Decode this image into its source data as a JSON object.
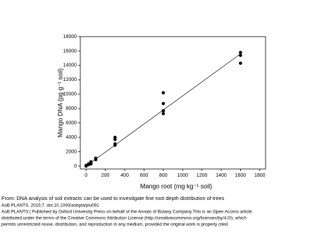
{
  "chart_data": {
    "type": "scatter",
    "x_label": "Mango root (mg kg⁻¹ soil)",
    "y_label": "Mango DNA (pg g⁻¹ soil)",
    "series": [
      {
        "color": "#000000",
        "x": [
          0,
          0,
          25,
          25,
          50,
          50,
          50,
          100,
          100,
          300,
          300,
          300,
          300,
          800,
          800,
          800,
          800,
          1600,
          1600,
          1600
        ],
        "values": [
          0,
          100,
          200,
          300,
          400,
          600,
          300,
          1100,
          900,
          4000,
          3700,
          3100,
          2900,
          10200,
          8700,
          7700,
          7300,
          15800,
          15400,
          14300
        ]
      }
    ],
    "trend_line": {
      "color": "#000000",
      "x": [
        0,
        1600
      ],
      "y": [
        0,
        15600
      ]
    },
    "xlim": [
      -60,
      1860
    ],
    "ylim": [
      -400,
      18000
    ],
    "xticks": [
      0,
      200,
      400,
      600,
      800,
      1000,
      1200,
      1400,
      1600,
      1800
    ],
    "yticks": [
      0,
      2000,
      4000,
      6000,
      8000,
      10000,
      12000,
      14000,
      16000,
      18000
    ]
  },
  "caption": [
    "From: DNA analysis of soil extracts can be used to investigate fine root depth distribution of trees",
    "AoB PLANTS. 2015;7. doi:10.1093/aobpla/plu091",
    "AoB PLANTS | Published by Oxford University Press on behalf of the Annals of Botany Company.This is an Open Access article",
    "distributed under the terms of the Creative Commons Attribution License (http://creativecommons.org/licenses/by/4.0/), which",
    "permits unrestricted reuse, distribution, and reproduction in any medium, provided the original work is properly cited."
  ]
}
